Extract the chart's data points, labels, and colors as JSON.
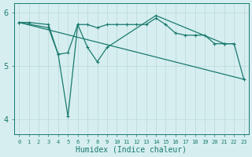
{
  "x_all": [
    0,
    1,
    2,
    3,
    4,
    5,
    6,
    7,
    8,
    9,
    10,
    11,
    12,
    13,
    14,
    15,
    16,
    17,
    18,
    19,
    20,
    21,
    22,
    23
  ],
  "series1_x": [
    0,
    1,
    3,
    4,
    5,
    6,
    7,
    8,
    9,
    10,
    11,
    12,
    13,
    14,
    15,
    16,
    17,
    18,
    19,
    20,
    21,
    22
  ],
  "series1_y": [
    5.82,
    5.82,
    5.78,
    5.22,
    5.25,
    5.78,
    5.78,
    5.72,
    5.78,
    5.78,
    5.78,
    5.78,
    5.78,
    5.9,
    5.78,
    5.62,
    5.58,
    5.58,
    5.58,
    5.42,
    5.42,
    5.42
  ],
  "series2_x": [
    0,
    3,
    4,
    5,
    6,
    7,
    8,
    9,
    14,
    21,
    22,
    23
  ],
  "series2_y": [
    5.82,
    5.72,
    5.22,
    4.05,
    5.78,
    5.35,
    5.08,
    5.35,
    5.95,
    5.42,
    5.42,
    4.75
  ],
  "series3_x": [
    0,
    23
  ],
  "series3_y": [
    5.82,
    4.75
  ],
  "bg_color": "#d6eef0",
  "line_color": "#1a7a6e",
  "grid_color": "#b8d8da",
  "xlabel": "Humidex (Indice chaleur)",
  "xlim": [
    -0.5,
    23.5
  ],
  "ylim": [
    3.72,
    6.18
  ],
  "yticks": [
    4,
    5,
    6
  ],
  "xticks": [
    0,
    1,
    2,
    3,
    4,
    5,
    6,
    7,
    8,
    9,
    10,
    11,
    12,
    13,
    14,
    15,
    16,
    17,
    18,
    19,
    20,
    21,
    22,
    23
  ]
}
